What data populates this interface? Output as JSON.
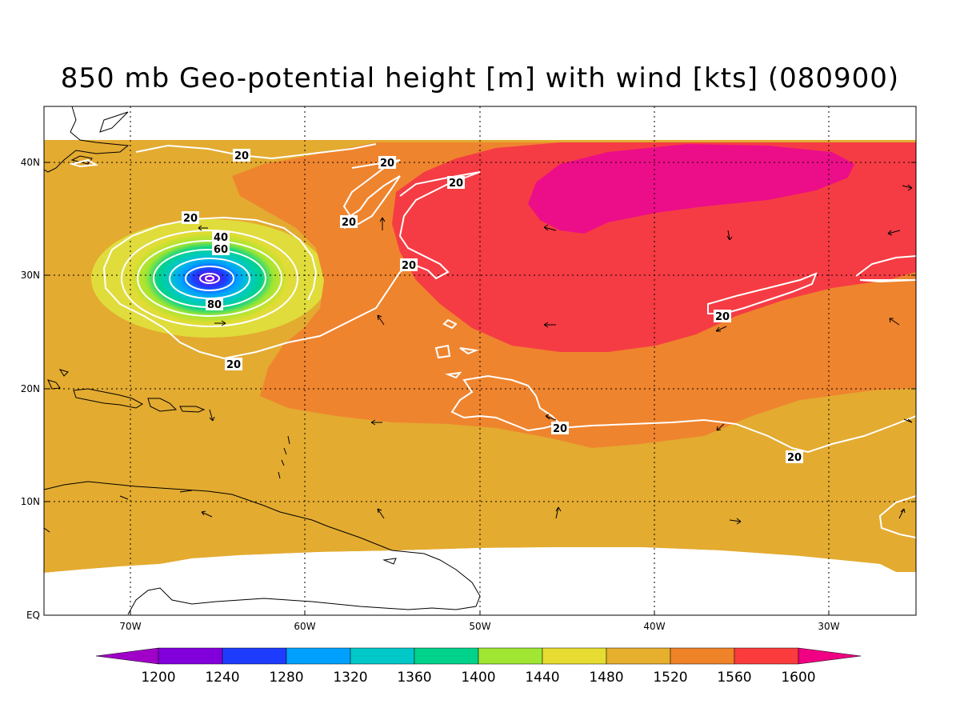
{
  "title": "850 mb Geo-potential height [m] with wind [kts] (080900)",
  "colors": {
    "band_1480": "#e0dc3c",
    "band_1520": "#e3ab30",
    "band_1560": "#ef842e",
    "band_1600": "#f53c44",
    "band_over": "#ec0e88",
    "contour": "#ffffff",
    "coast": "#000000"
  },
  "lat_labels": [
    "40N",
    "30N",
    "20N",
    "10N",
    "EQ"
  ],
  "lon_labels": [
    "70W",
    "60W",
    "50W",
    "40W",
    "30W"
  ],
  "colorbar": {
    "colors": [
      "#a000c8",
      "#8200dc",
      "#1e3cff",
      "#00a0ff",
      "#00c8c8",
      "#00d28c",
      "#a0e632",
      "#e6dc32",
      "#e6af2d",
      "#f08228",
      "#fa3c3c",
      "#f00082"
    ],
    "labels": [
      "1200",
      "1240",
      "1280",
      "1320",
      "1360",
      "1400",
      "1440",
      "1480",
      "1520",
      "1560",
      "1600"
    ]
  },
  "contour_labels": [
    "20",
    "20",
    "20",
    "20",
    "20",
    "20",
    "40",
    "60",
    "80",
    "20",
    "20",
    "20",
    "20"
  ]
}
